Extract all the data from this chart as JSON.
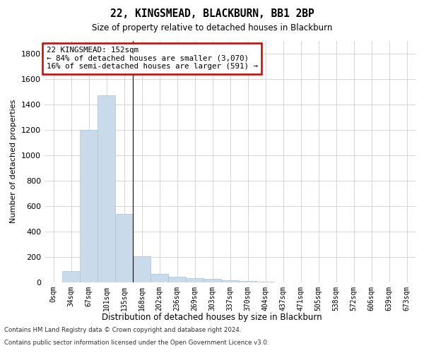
{
  "title": "22, KINGSMEAD, BLACKBURN, BB1 2BP",
  "subtitle": "Size of property relative to detached houses in Blackburn",
  "xlabel": "Distribution of detached houses by size in Blackburn",
  "ylabel": "Number of detached properties",
  "bar_color": "#c9daea",
  "bar_edge_color": "#a8c4d8",
  "background_color": "#ffffff",
  "grid_color": "#c8c8c8",
  "categories": [
    "0sqm",
    "34sqm",
    "67sqm",
    "101sqm",
    "135sqm",
    "168sqm",
    "202sqm",
    "236sqm",
    "269sqm",
    "303sqm",
    "337sqm",
    "370sqm",
    "404sqm",
    "437sqm",
    "471sqm",
    "505sqm",
    "538sqm",
    "572sqm",
    "606sqm",
    "639sqm",
    "673sqm"
  ],
  "values": [
    0,
    90,
    1200,
    1470,
    540,
    205,
    65,
    45,
    35,
    30,
    15,
    10,
    5,
    0,
    0,
    0,
    0,
    0,
    0,
    0,
    0
  ],
  "ylim": [
    0,
    1900
  ],
  "yticks": [
    0,
    200,
    400,
    600,
    800,
    1000,
    1200,
    1400,
    1600,
    1800
  ],
  "annotation_line1": "22 KINGSMEAD: 152sqm",
  "annotation_line2": "← 84% of detached houses are smaller (3,070)",
  "annotation_line3": "16% of semi-detached houses are larger (591) →",
  "annotation_box_color": "#ffffff",
  "annotation_box_edge_color": "#cc0000",
  "vline_index": 4,
  "footer_line1": "Contains HM Land Registry data © Crown copyright and database right 2024.",
  "footer_line2": "Contains public sector information licensed under the Open Government Licence v3.0."
}
